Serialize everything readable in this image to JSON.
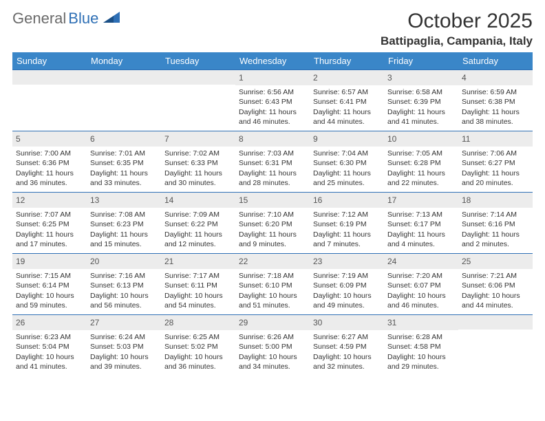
{
  "header": {
    "logo_text_1": "General",
    "logo_text_2": "Blue",
    "month_title": "October 2025",
    "location": "Battipaglia, Campania, Italy"
  },
  "colors": {
    "header_bar": "#3a86c8",
    "week_border": "#2e6fb5",
    "day_bar_bg": "#ececec",
    "logo_gray": "#6a6a6a",
    "logo_blue": "#2e6fb5"
  },
  "weekdays": [
    "Sunday",
    "Monday",
    "Tuesday",
    "Wednesday",
    "Thursday",
    "Friday",
    "Saturday"
  ],
  "weeks": [
    [
      {
        "day": "",
        "sunrise": "",
        "sunset": "",
        "daylight1": "",
        "daylight2": ""
      },
      {
        "day": "",
        "sunrise": "",
        "sunset": "",
        "daylight1": "",
        "daylight2": ""
      },
      {
        "day": "",
        "sunrise": "",
        "sunset": "",
        "daylight1": "",
        "daylight2": ""
      },
      {
        "day": "1",
        "sunrise": "Sunrise: 6:56 AM",
        "sunset": "Sunset: 6:43 PM",
        "daylight1": "Daylight: 11 hours",
        "daylight2": "and 46 minutes."
      },
      {
        "day": "2",
        "sunrise": "Sunrise: 6:57 AM",
        "sunset": "Sunset: 6:41 PM",
        "daylight1": "Daylight: 11 hours",
        "daylight2": "and 44 minutes."
      },
      {
        "day": "3",
        "sunrise": "Sunrise: 6:58 AM",
        "sunset": "Sunset: 6:39 PM",
        "daylight1": "Daylight: 11 hours",
        "daylight2": "and 41 minutes."
      },
      {
        "day": "4",
        "sunrise": "Sunrise: 6:59 AM",
        "sunset": "Sunset: 6:38 PM",
        "daylight1": "Daylight: 11 hours",
        "daylight2": "and 38 minutes."
      }
    ],
    [
      {
        "day": "5",
        "sunrise": "Sunrise: 7:00 AM",
        "sunset": "Sunset: 6:36 PM",
        "daylight1": "Daylight: 11 hours",
        "daylight2": "and 36 minutes."
      },
      {
        "day": "6",
        "sunrise": "Sunrise: 7:01 AM",
        "sunset": "Sunset: 6:35 PM",
        "daylight1": "Daylight: 11 hours",
        "daylight2": "and 33 minutes."
      },
      {
        "day": "7",
        "sunrise": "Sunrise: 7:02 AM",
        "sunset": "Sunset: 6:33 PM",
        "daylight1": "Daylight: 11 hours",
        "daylight2": "and 30 minutes."
      },
      {
        "day": "8",
        "sunrise": "Sunrise: 7:03 AM",
        "sunset": "Sunset: 6:31 PM",
        "daylight1": "Daylight: 11 hours",
        "daylight2": "and 28 minutes."
      },
      {
        "day": "9",
        "sunrise": "Sunrise: 7:04 AM",
        "sunset": "Sunset: 6:30 PM",
        "daylight1": "Daylight: 11 hours",
        "daylight2": "and 25 minutes."
      },
      {
        "day": "10",
        "sunrise": "Sunrise: 7:05 AM",
        "sunset": "Sunset: 6:28 PM",
        "daylight1": "Daylight: 11 hours",
        "daylight2": "and 22 minutes."
      },
      {
        "day": "11",
        "sunrise": "Sunrise: 7:06 AM",
        "sunset": "Sunset: 6:27 PM",
        "daylight1": "Daylight: 11 hours",
        "daylight2": "and 20 minutes."
      }
    ],
    [
      {
        "day": "12",
        "sunrise": "Sunrise: 7:07 AM",
        "sunset": "Sunset: 6:25 PM",
        "daylight1": "Daylight: 11 hours",
        "daylight2": "and 17 minutes."
      },
      {
        "day": "13",
        "sunrise": "Sunrise: 7:08 AM",
        "sunset": "Sunset: 6:23 PM",
        "daylight1": "Daylight: 11 hours",
        "daylight2": "and 15 minutes."
      },
      {
        "day": "14",
        "sunrise": "Sunrise: 7:09 AM",
        "sunset": "Sunset: 6:22 PM",
        "daylight1": "Daylight: 11 hours",
        "daylight2": "and 12 minutes."
      },
      {
        "day": "15",
        "sunrise": "Sunrise: 7:10 AM",
        "sunset": "Sunset: 6:20 PM",
        "daylight1": "Daylight: 11 hours",
        "daylight2": "and 9 minutes."
      },
      {
        "day": "16",
        "sunrise": "Sunrise: 7:12 AM",
        "sunset": "Sunset: 6:19 PM",
        "daylight1": "Daylight: 11 hours",
        "daylight2": "and 7 minutes."
      },
      {
        "day": "17",
        "sunrise": "Sunrise: 7:13 AM",
        "sunset": "Sunset: 6:17 PM",
        "daylight1": "Daylight: 11 hours",
        "daylight2": "and 4 minutes."
      },
      {
        "day": "18",
        "sunrise": "Sunrise: 7:14 AM",
        "sunset": "Sunset: 6:16 PM",
        "daylight1": "Daylight: 11 hours",
        "daylight2": "and 2 minutes."
      }
    ],
    [
      {
        "day": "19",
        "sunrise": "Sunrise: 7:15 AM",
        "sunset": "Sunset: 6:14 PM",
        "daylight1": "Daylight: 10 hours",
        "daylight2": "and 59 minutes."
      },
      {
        "day": "20",
        "sunrise": "Sunrise: 7:16 AM",
        "sunset": "Sunset: 6:13 PM",
        "daylight1": "Daylight: 10 hours",
        "daylight2": "and 56 minutes."
      },
      {
        "day": "21",
        "sunrise": "Sunrise: 7:17 AM",
        "sunset": "Sunset: 6:11 PM",
        "daylight1": "Daylight: 10 hours",
        "daylight2": "and 54 minutes."
      },
      {
        "day": "22",
        "sunrise": "Sunrise: 7:18 AM",
        "sunset": "Sunset: 6:10 PM",
        "daylight1": "Daylight: 10 hours",
        "daylight2": "and 51 minutes."
      },
      {
        "day": "23",
        "sunrise": "Sunrise: 7:19 AM",
        "sunset": "Sunset: 6:09 PM",
        "daylight1": "Daylight: 10 hours",
        "daylight2": "and 49 minutes."
      },
      {
        "day": "24",
        "sunrise": "Sunrise: 7:20 AM",
        "sunset": "Sunset: 6:07 PM",
        "daylight1": "Daylight: 10 hours",
        "daylight2": "and 46 minutes."
      },
      {
        "day": "25",
        "sunrise": "Sunrise: 7:21 AM",
        "sunset": "Sunset: 6:06 PM",
        "daylight1": "Daylight: 10 hours",
        "daylight2": "and 44 minutes."
      }
    ],
    [
      {
        "day": "26",
        "sunrise": "Sunrise: 6:23 AM",
        "sunset": "Sunset: 5:04 PM",
        "daylight1": "Daylight: 10 hours",
        "daylight2": "and 41 minutes."
      },
      {
        "day": "27",
        "sunrise": "Sunrise: 6:24 AM",
        "sunset": "Sunset: 5:03 PM",
        "daylight1": "Daylight: 10 hours",
        "daylight2": "and 39 minutes."
      },
      {
        "day": "28",
        "sunrise": "Sunrise: 6:25 AM",
        "sunset": "Sunset: 5:02 PM",
        "daylight1": "Daylight: 10 hours",
        "daylight2": "and 36 minutes."
      },
      {
        "day": "29",
        "sunrise": "Sunrise: 6:26 AM",
        "sunset": "Sunset: 5:00 PM",
        "daylight1": "Daylight: 10 hours",
        "daylight2": "and 34 minutes."
      },
      {
        "day": "30",
        "sunrise": "Sunrise: 6:27 AM",
        "sunset": "Sunset: 4:59 PM",
        "daylight1": "Daylight: 10 hours",
        "daylight2": "and 32 minutes."
      },
      {
        "day": "31",
        "sunrise": "Sunrise: 6:28 AM",
        "sunset": "Sunset: 4:58 PM",
        "daylight1": "Daylight: 10 hours",
        "daylight2": "and 29 minutes."
      },
      {
        "day": "",
        "sunrise": "",
        "sunset": "",
        "daylight1": "",
        "daylight2": ""
      }
    ]
  ]
}
